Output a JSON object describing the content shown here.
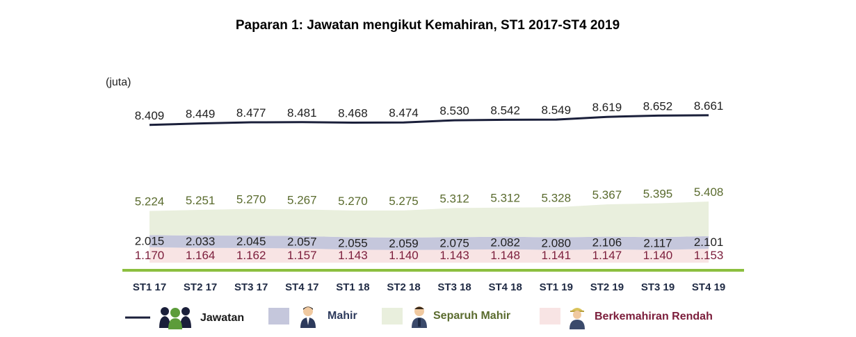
{
  "chart_data": {
    "type": "area",
    "title": "Paparan 1: Jawatan mengikut Kemahiran, ST1 2017-ST4 2019",
    "unit_label": "(juta)",
    "categories": [
      "ST1 17",
      "ST2 17",
      "ST3 17",
      "ST4 17",
      "ST1 18",
      "ST2 18",
      "ST3 18",
      "ST4 18",
      "ST1 19",
      "ST2 19",
      "ST3 19",
      "ST4 19"
    ],
    "series": [
      {
        "name": "Jawatan",
        "kind": "line",
        "color": "#1a1f3a",
        "values": [
          8.409,
          8.449,
          8.477,
          8.481,
          8.468,
          8.474,
          8.53,
          8.542,
          8.549,
          8.619,
          8.652,
          8.661
        ],
        "labels": [
          "8.409",
          "8.449",
          "8.477",
          "8.481",
          "8.468",
          "8.474",
          "8.530",
          "8.542",
          "8.549",
          "8.619",
          "8.652",
          "8.661"
        ],
        "label_color": "#1f1f1f",
        "icon": "people-group-icon"
      },
      {
        "name": "Mahir",
        "kind": "area",
        "color": "#c5c7dc",
        "values": [
          2.015,
          2.033,
          2.045,
          2.057,
          2.055,
          2.059,
          2.075,
          2.082,
          2.08,
          2.106,
          2.117,
          2.101
        ],
        "labels": [
          "2.015",
          "2.033",
          "2.045",
          "2.057",
          "2.055",
          "2.059",
          "2.075",
          "2.082",
          "2.080",
          "2.106",
          "2.117",
          "2.101"
        ],
        "label_color": "#1f1f1f",
        "icon": "businessman-icon"
      },
      {
        "name": "Separuh Mahir",
        "kind": "area",
        "color": "#e9efdd",
        "values": [
          5.224,
          5.251,
          5.27,
          5.267,
          5.27,
          5.275,
          5.312,
          5.312,
          5.328,
          5.367,
          5.395,
          5.408
        ],
        "labels": [
          "5.224",
          "5.251",
          "5.270",
          "5.267",
          "5.270",
          "5.275",
          "5.312",
          "5.312",
          "5.328",
          "5.367",
          "5.395",
          "5.408"
        ],
        "label_color": "#5a6b2e",
        "icon": "office-worker-icon"
      },
      {
        "name": "Berkemahiran Rendah",
        "kind": "area",
        "color": "#f8e4e4",
        "values": [
          1.17,
          1.164,
          1.162,
          1.157,
          1.143,
          1.14,
          1.143,
          1.148,
          1.141,
          1.147,
          1.14,
          1.153
        ],
        "labels": [
          "1.170",
          "1.164",
          "1.162",
          "1.157",
          "1.143",
          "1.140",
          "1.143",
          "1.148",
          "1.141",
          "1.147",
          "1.140",
          "1.153"
        ],
        "label_color": "#7b1d3b",
        "icon": "worker-helmet-icon"
      }
    ],
    "legend_position": "bottom",
    "grid": false,
    "baseline_color": "#8cbf3f",
    "tick_color": "#1f2a44"
  }
}
